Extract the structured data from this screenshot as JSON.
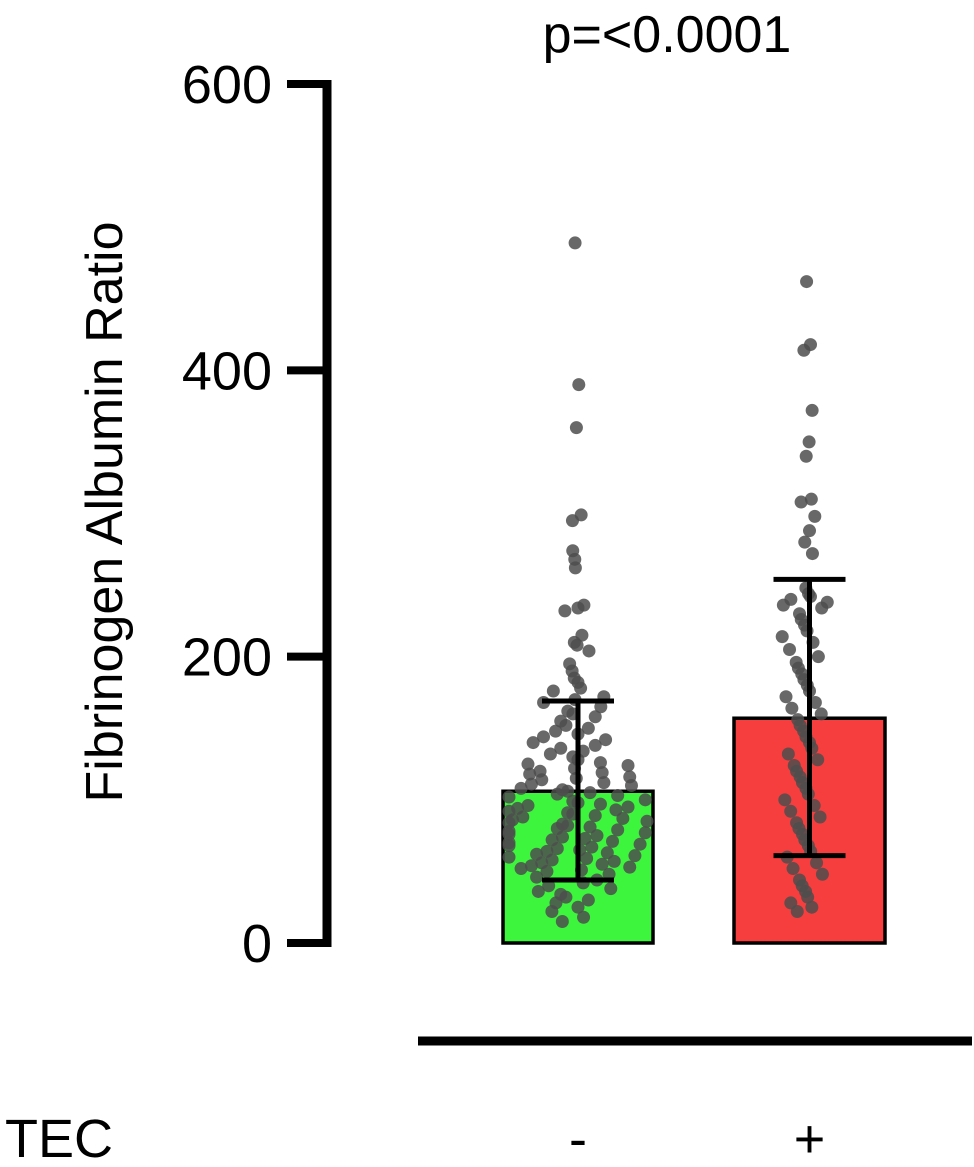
{
  "chart_data": {
    "type": "bar",
    "title": "",
    "annotation": "p=<0.0001",
    "ylabel": "Fibrinogen Albumin Ratio",
    "xlabel": "",
    "ylim": [
      0,
      600
    ],
    "yticks": [
      0,
      200,
      400,
      600
    ],
    "grouping_label": "TEC",
    "categories": [
      "-",
      "+"
    ],
    "values": [
      106,
      157
    ],
    "error_bars": [
      {
        "low": 44,
        "high": 169
      },
      {
        "low": 61,
        "high": 254
      }
    ],
    "colors": {
      "bars": [
        "#3ef53e",
        "#f73e3e"
      ],
      "points": "#4d4d4d",
      "axis": "#000000"
    },
    "points": [
      [
        489,
        390,
        360,
        299,
        295,
        274,
        268,
        262,
        236,
        234,
        232,
        215,
        210,
        208,
        204,
        195,
        190,
        185,
        182,
        178,
        176,
        172,
        170,
        168,
        165,
        162,
        160,
        158,
        155,
        152,
        150,
        148,
        146,
        144,
        142,
        140,
        138,
        136,
        134,
        132,
        130,
        128,
        126,
        125,
        124,
        122,
        120,
        119,
        118,
        116,
        115,
        114,
        112,
        111,
        110,
        108,
        107,
        106,
        105,
        104,
        103,
        102,
        100,
        99,
        98,
        97,
        96,
        95,
        94,
        93,
        92,
        91,
        90,
        89,
        88,
        87,
        86,
        85,
        84,
        83,
        82,
        81,
        80,
        79,
        78,
        77,
        76,
        75,
        74,
        73,
        72,
        71,
        70,
        69,
        68,
        67,
        66,
        65,
        64,
        63,
        62,
        61,
        60,
        59,
        58,
        57,
        56,
        55,
        54,
        53,
        52,
        51,
        50,
        48,
        46,
        44,
        42,
        40,
        38,
        36,
        34,
        32,
        30,
        28,
        25,
        22,
        18,
        15
      ],
      [
        462,
        418,
        414,
        372,
        350,
        340,
        310,
        308,
        298,
        288,
        280,
        272,
        248,
        244,
        242,
        240,
        238,
        236,
        234,
        230,
        226,
        222,
        218,
        214,
        210,
        205,
        200,
        196,
        192,
        188,
        184,
        180,
        176,
        172,
        168,
        164,
        160,
        156,
        152,
        148,
        144,
        140,
        136,
        132,
        128,
        124,
        120,
        116,
        112,
        108,
        104,
        100,
        96,
        92,
        88,
        84,
        80,
        76,
        72,
        68,
        64,
        60,
        56,
        52,
        48,
        44,
        40,
        36,
        32,
        28,
        25,
        22
      ]
    ]
  }
}
